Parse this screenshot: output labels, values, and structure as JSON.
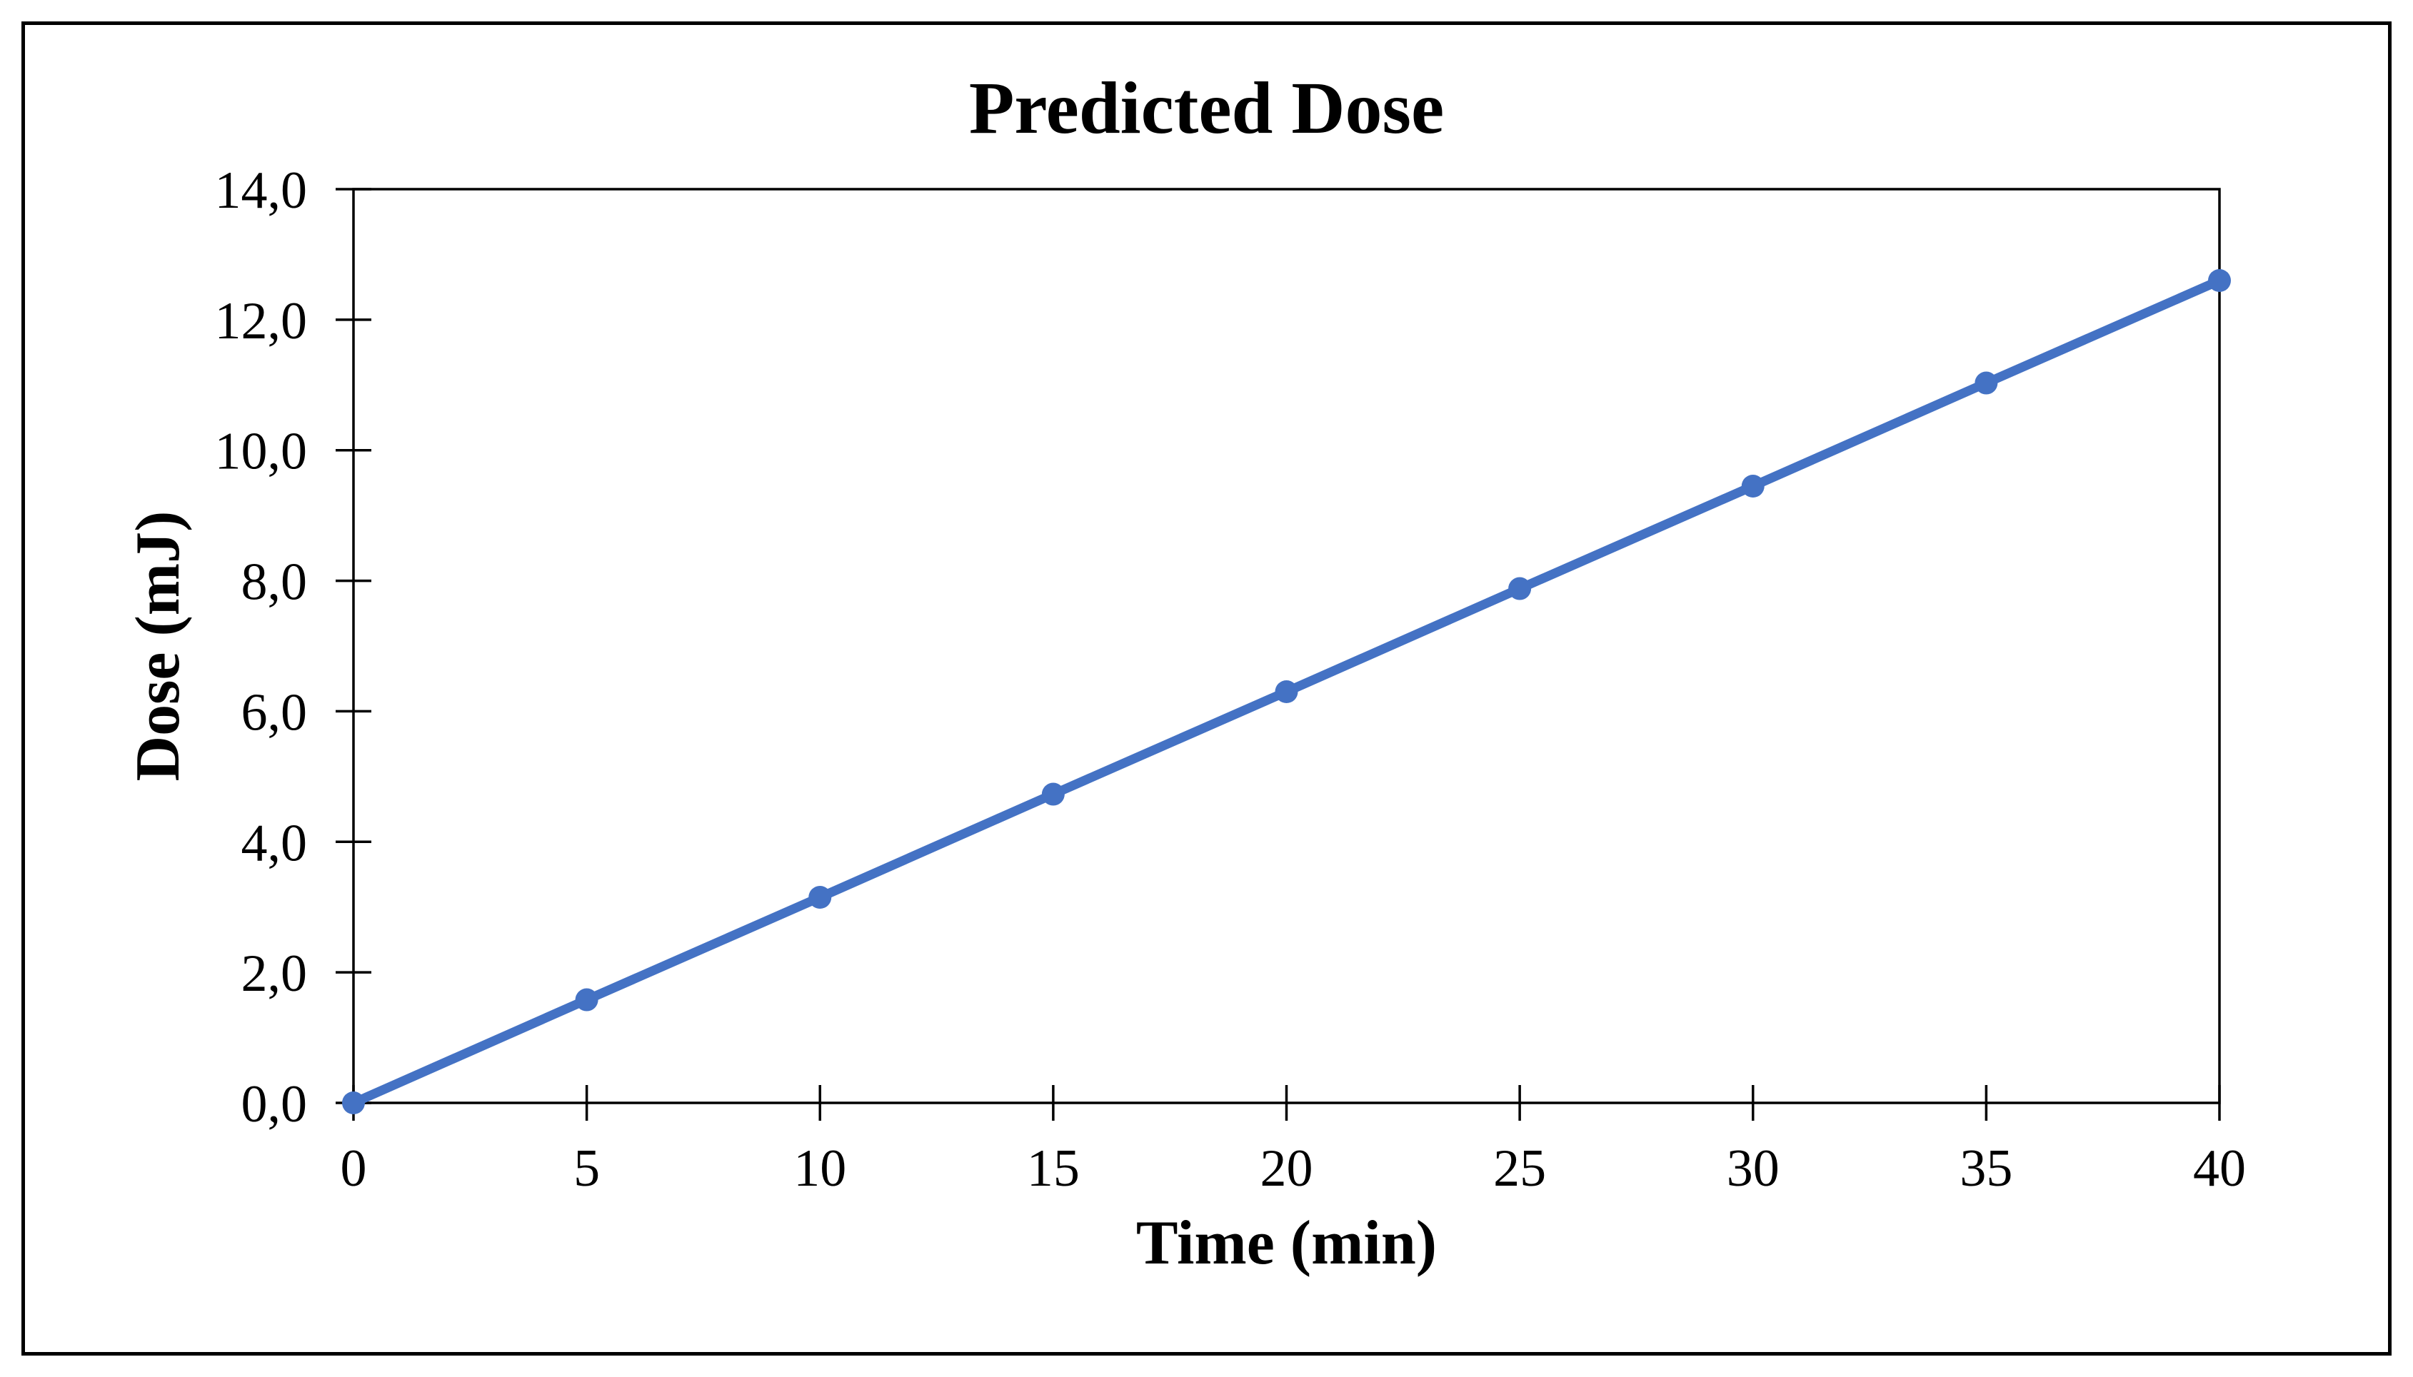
{
  "figure": {
    "title": "Predicted Dose",
    "x_axis_title": "Time (min)",
    "y_axis_title": "Dose (mJ)"
  },
  "chart_data": {
    "type": "line",
    "title": "Predicted Dose",
    "xlabel": "Time (min)",
    "ylabel": "Dose (mJ)",
    "series": [
      {
        "name": "Predicted Dose",
        "x": [
          0,
          5,
          10,
          15,
          20,
          25,
          30,
          35,
          40
        ],
        "y": [
          0.0,
          1.58,
          3.15,
          4.73,
          6.3,
          7.88,
          9.45,
          11.03,
          12.6
        ]
      }
    ],
    "xlim": [
      0,
      40
    ],
    "ylim": [
      0,
      14
    ],
    "x_tick_values": [
      0,
      5,
      10,
      15,
      20,
      25,
      30,
      35,
      40
    ],
    "x_tick_labels": [
      "0",
      "5",
      "10",
      "15",
      "20",
      "25",
      "30",
      "35",
      "40"
    ],
    "y_tick_values": [
      0,
      2,
      4,
      6,
      8,
      10,
      12,
      14
    ],
    "y_tick_labels": [
      "0,0",
      "2,0",
      "4,0",
      "6,0",
      "8,0",
      "10,0",
      "12,0",
      "14,0"
    ],
    "decimal_separator": ",",
    "grid": false,
    "legend": "none",
    "marker": "circle",
    "colors": {
      "line_color": "#4472C4",
      "marker_color": "#4472C4",
      "axis_color": "#000000",
      "text_color": "#000000",
      "background": "#FFFFFF"
    }
  }
}
